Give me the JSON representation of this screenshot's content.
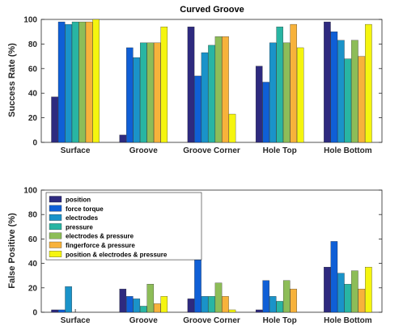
{
  "chart_data": [
    {
      "type": "bar",
      "title": "Curved Groove",
      "xlabel": "",
      "ylabel": "Success Rate (%)",
      "ylim": [
        0,
        100
      ],
      "yticks": [
        0,
        20,
        40,
        60,
        80,
        100
      ],
      "categories": [
        "Surface",
        "Groove",
        "Groove Corner",
        "Hole Top",
        "Hole Bottom"
      ],
      "series": [
        {
          "name": "position",
          "color": "#2e2a7f",
          "values": [
            37,
            6,
            94,
            62,
            98
          ]
        },
        {
          "name": "force torque",
          "color": "#0f5fd6",
          "values": [
            98,
            77,
            54,
            49,
            90
          ]
        },
        {
          "name": "electrodes",
          "color": "#1a93c9",
          "values": [
            96,
            69,
            73,
            81,
            83
          ]
        },
        {
          "name": "pressure",
          "color": "#28b5a3",
          "values": [
            98,
            81,
            79,
            94,
            68
          ]
        },
        {
          "name": "electrodes & pressure",
          "color": "#8dbd58",
          "values": [
            98,
            81,
            86,
            81,
            83
          ]
        },
        {
          "name": "fingerforce & pressure",
          "color": "#f7b23b",
          "values": [
            98,
            81,
            86,
            96,
            70
          ]
        },
        {
          "name": "position & electrodes & pressure",
          "color": "#f5f50f",
          "values": [
            100,
            94,
            23,
            77,
            96
          ]
        }
      ],
      "grid": false,
      "legend": "none"
    },
    {
      "type": "bar",
      "title": "",
      "xlabel": "",
      "ylabel": "False Positive (%)",
      "ylim": [
        0,
        100
      ],
      "yticks": [
        0,
        20,
        40,
        60,
        80,
        100
      ],
      "categories": [
        "Surface",
        "Groove",
        "Groove Corner",
        "Hole Top",
        "Hole Bottom"
      ],
      "series": [
        {
          "name": "position",
          "color": "#2e2a7f",
          "values": [
            2,
            19,
            11,
            2,
            37
          ]
        },
        {
          "name": "force torque",
          "color": "#0f5fd6",
          "values": [
            2,
            13,
            47,
            26,
            58
          ]
        },
        {
          "name": "electrodes",
          "color": "#1a93c9",
          "values": [
            21,
            11,
            13,
            13,
            32
          ]
        },
        {
          "name": "pressure",
          "color": "#28b5a3",
          "values": [
            0,
            5,
            13,
            9,
            23
          ]
        },
        {
          "name": "electrodes & pressure",
          "color": "#8dbd58",
          "values": [
            0,
            23,
            24,
            26,
            34
          ]
        },
        {
          "name": "fingerforce & pressure",
          "color": "#f7b23b",
          "values": [
            0,
            7,
            13,
            19,
            19
          ]
        },
        {
          "name": "position & electrodes & pressure",
          "color": "#f5f50f",
          "values": [
            0,
            13,
            2,
            0,
            37
          ]
        }
      ],
      "grid": false,
      "legend": "top-left"
    }
  ]
}
